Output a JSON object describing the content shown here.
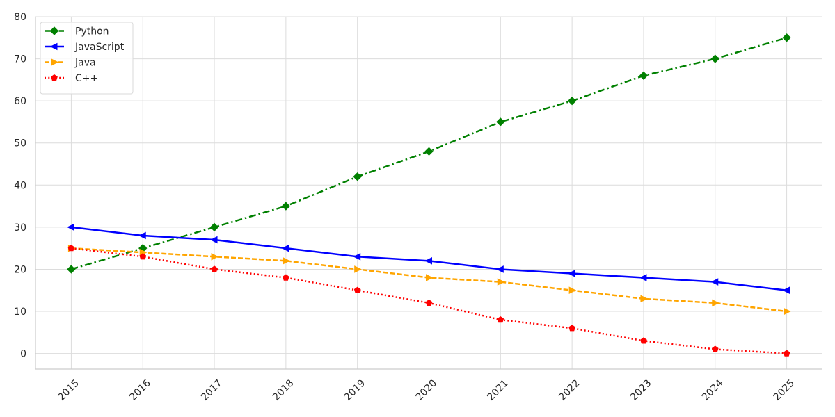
{
  "chart_data": {
    "type": "line",
    "title": "",
    "xlabel": "",
    "ylabel": "",
    "x": [
      2015,
      2016,
      2017,
      2018,
      2019,
      2020,
      2021,
      2022,
      2023,
      2024,
      2025
    ],
    "x_tick_labels": [
      "2015",
      "2016",
      "2017",
      "2018",
      "2019",
      "2020",
      "2021",
      "2022",
      "2023",
      "2024",
      "2025"
    ],
    "xlim": [
      2014.5,
      2025.5
    ],
    "ylim": [
      -3.7,
      80
    ],
    "y_ticks": [
      0,
      10,
      20,
      30,
      40,
      50,
      60,
      70,
      80
    ],
    "y_tick_labels": [
      "0",
      "10",
      "20",
      "30",
      "40",
      "50",
      "60",
      "70",
      "80"
    ],
    "grid": true,
    "legend_position": "top-left",
    "series": [
      {
        "name": "Python",
        "values": [
          20,
          25,
          30,
          35,
          42,
          48,
          55,
          60,
          66,
          70,
          75
        ],
        "color": "#008000",
        "line_style": "dash-dot",
        "marker": "diamond"
      },
      {
        "name": "JavaScript",
        "values": [
          30,
          28,
          27,
          25,
          23,
          22,
          20,
          19,
          18,
          17,
          15
        ],
        "color": "#0000ff",
        "line_style": "solid",
        "marker": "triangle-left"
      },
      {
        "name": "Java",
        "values": [
          25,
          24,
          23,
          22,
          20,
          18,
          17,
          15,
          13,
          12,
          10
        ],
        "color": "#ffa500",
        "line_style": "dashed",
        "marker": "triangle-right"
      },
      {
        "name": "C++",
        "values": [
          25,
          23,
          20,
          18,
          15,
          12,
          8,
          6,
          3,
          1,
          0
        ],
        "color": "#ff0000",
        "line_style": "dotted",
        "marker": "pentagon"
      }
    ]
  }
}
